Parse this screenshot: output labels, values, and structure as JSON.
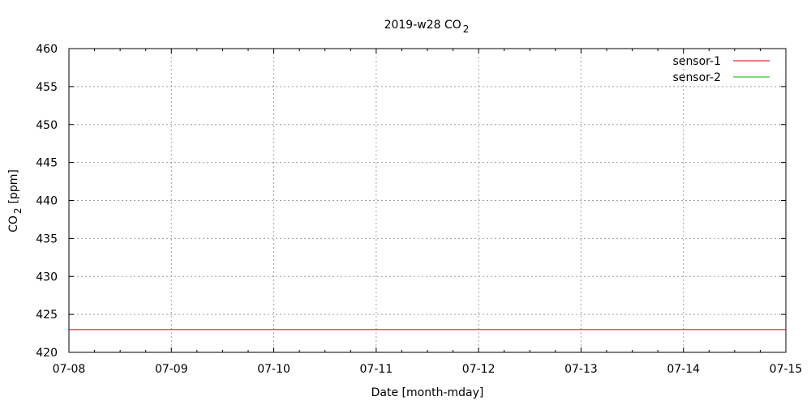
{
  "chart_data": {
    "type": "line",
    "title": "2019-w28 CO",
    "title_sub": "2",
    "xlabel": "Date [month-mday]",
    "ylabel_main": "CO",
    "ylabel_sub": "2",
    "ylabel_unit": "[ppm]",
    "x_ticks": [
      "07-08",
      "07-09",
      "07-10",
      "07-11",
      "07-12",
      "07-13",
      "07-14",
      "07-15"
    ],
    "xlim": [
      "07-08",
      "07-15"
    ],
    "ylim": [
      420,
      460
    ],
    "y_ticks": [
      420,
      425,
      430,
      435,
      440,
      445,
      450,
      455,
      460
    ],
    "grid": true,
    "legend_position": "top-right",
    "series": [
      {
        "name": "sensor-1",
        "color": "#c00000",
        "points": [
          [
            "07-08",
            423
          ],
          [
            "07-15",
            423
          ]
        ]
      },
      {
        "name": "sensor-2",
        "color": "#00b000",
        "points": []
      }
    ]
  }
}
